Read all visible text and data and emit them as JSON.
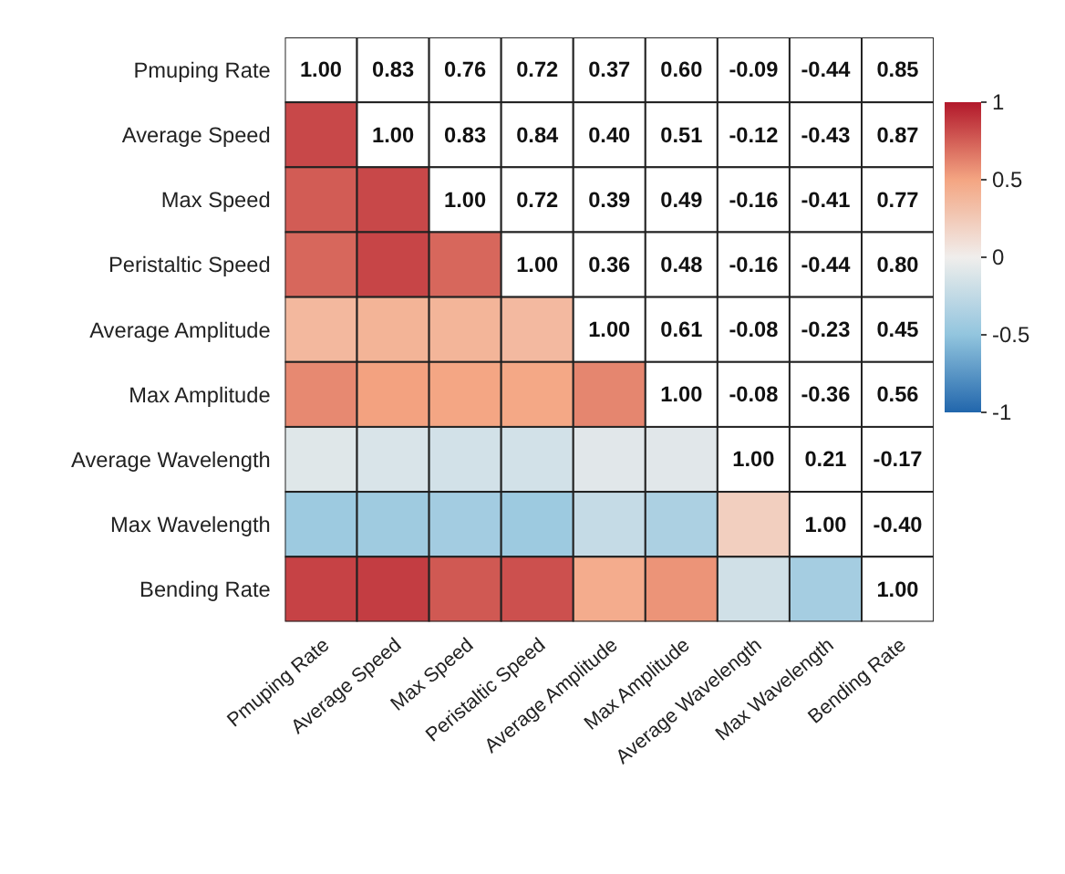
{
  "chart_data": {
    "type": "heatmap",
    "categories": [
      "Pmuping Rate",
      "Average Speed",
      "Max Speed",
      "Peristaltic Speed",
      "Average Amplitude",
      "Max Amplitude",
      "Average Wavelength",
      "Max Wavelength",
      "Bending Rate"
    ],
    "y_categories": [
      "Pmuping Rate",
      "Average Speed",
      "Max Speed",
      "Peristaltic Speed",
      "Average Amplitude",
      "Max Amplitude",
      "Average Wavelength",
      "Max Wavelength",
      "Bending Rate"
    ],
    "cells": [
      [
        null,
        null,
        null,
        null,
        null,
        null,
        null,
        null,
        null
      ],
      [
        0.83,
        null,
        null,
        null,
        null,
        null,
        null,
        null,
        null
      ],
      [
        0.76,
        0.83,
        null,
        null,
        null,
        null,
        null,
        null,
        null
      ],
      [
        0.72,
        0.84,
        0.72,
        null,
        null,
        null,
        null,
        null,
        null
      ],
      [
        0.37,
        0.4,
        0.39,
        0.36,
        null,
        null,
        null,
        null,
        null
      ],
      [
        0.6,
        0.51,
        0.49,
        0.48,
        0.61,
        null,
        null,
        null,
        null
      ],
      [
        -0.09,
        -0.12,
        -0.16,
        -0.16,
        -0.08,
        -0.08,
        null,
        null,
        null
      ],
      [
        -0.44,
        -0.43,
        -0.41,
        -0.44,
        -0.23,
        -0.36,
        0.21,
        null,
        null
      ],
      [
        0.85,
        0.87,
        0.77,
        0.8,
        0.45,
        0.56,
        -0.17,
        -0.4,
        null
      ]
    ],
    "cell_labels": [
      [
        "1.00",
        "0.83",
        "0.76",
        "0.72",
        "0.37",
        "0.60",
        "-0.09",
        "-0.44",
        "0.85"
      ],
      [
        null,
        "1.00",
        "0.83",
        "0.84",
        "0.40",
        "0.51",
        "-0.12",
        "-0.43",
        "0.87"
      ],
      [
        null,
        null,
        "1.00",
        "0.72",
        "0.39",
        "0.49",
        "-0.16",
        "-0.41",
        "0.77"
      ],
      [
        null,
        null,
        null,
        "1.00",
        "0.36",
        "0.48",
        "-0.16",
        "-0.44",
        "0.80"
      ],
      [
        null,
        null,
        null,
        null,
        "1.00",
        "0.61",
        "-0.08",
        "-0.23",
        "0.45"
      ],
      [
        null,
        null,
        null,
        null,
        null,
        "1.00",
        "-0.08",
        "-0.36",
        "0.56"
      ],
      [
        null,
        null,
        null,
        null,
        null,
        null,
        "1.00",
        "0.21",
        "-0.17"
      ],
      [
        null,
        null,
        null,
        null,
        null,
        null,
        null,
        "1.00",
        "-0.40"
      ],
      [
        null,
        null,
        null,
        null,
        null,
        null,
        null,
        null,
        "1.00"
      ]
    ],
    "clim": [
      -1,
      1
    ],
    "cticks": [
      1,
      0.5,
      0,
      -0.5,
      -1
    ]
  }
}
